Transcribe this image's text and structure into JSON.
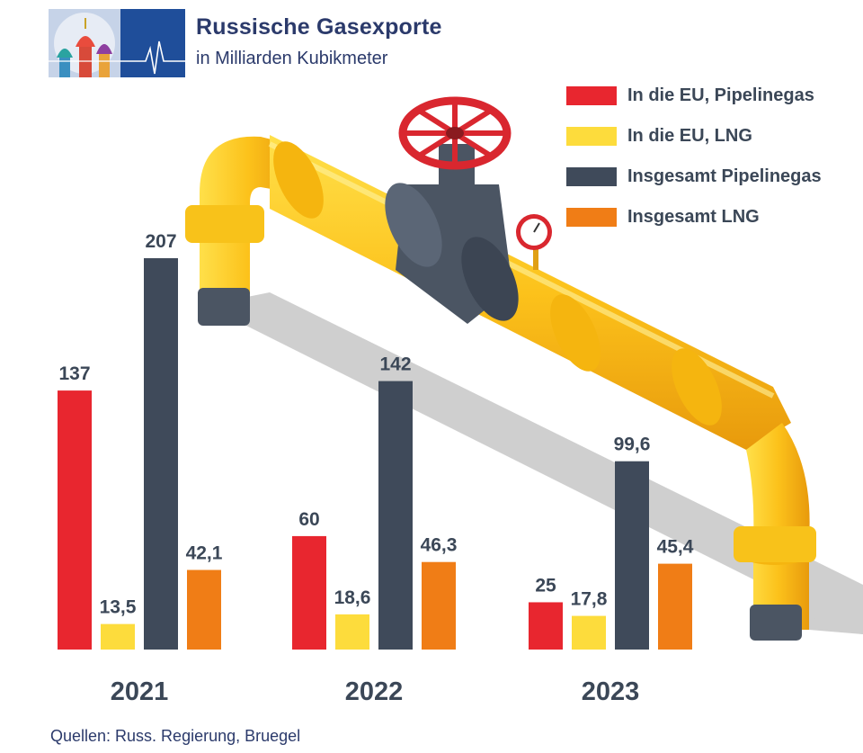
{
  "header": {
    "title": "Russische Gasexporte",
    "subtitle": "in Milliarden Kubikmeter"
  },
  "source": "Quellen: Russ. Regierung, Bruegel",
  "colors": {
    "eu_pipeline": "#e8262f",
    "eu_lng": "#fddc3c",
    "total_pipeline": "#3f4a5a",
    "total_lng": "#f07d16",
    "title": "#2b3a6b"
  },
  "chart_data": {
    "type": "bar",
    "title": "Russische Gasexporte",
    "subtitle": "in Milliarden Kubikmeter",
    "categories": [
      "2021",
      "2022",
      "2023"
    ],
    "series": [
      {
        "name": "In die EU, Pipelinegas",
        "values": [
          137,
          60,
          25
        ],
        "labels": [
          "137",
          "60",
          "25"
        ],
        "color": "#e8262f"
      },
      {
        "name": "In die EU, LNG",
        "values": [
          13.5,
          18.6,
          17.8
        ],
        "labels": [
          "13,5",
          "18,6",
          "17,8"
        ],
        "color": "#fddc3c"
      },
      {
        "name": "Insgesamt Pipelinegas",
        "values": [
          207,
          142,
          99.6
        ],
        "labels": [
          "207",
          "142",
          "99,6"
        ],
        "color": "#3f4a5a"
      },
      {
        "name": "Insgesamt LNG",
        "values": [
          42.1,
          46.3,
          45.4
        ],
        "labels": [
          "42,1",
          "46,3",
          "45,4"
        ],
        "color": "#f07d16"
      }
    ],
    "ylim": [
      0,
      207
    ],
    "xlabel": "",
    "ylabel": "",
    "grid": false,
    "legend": "top-right"
  }
}
